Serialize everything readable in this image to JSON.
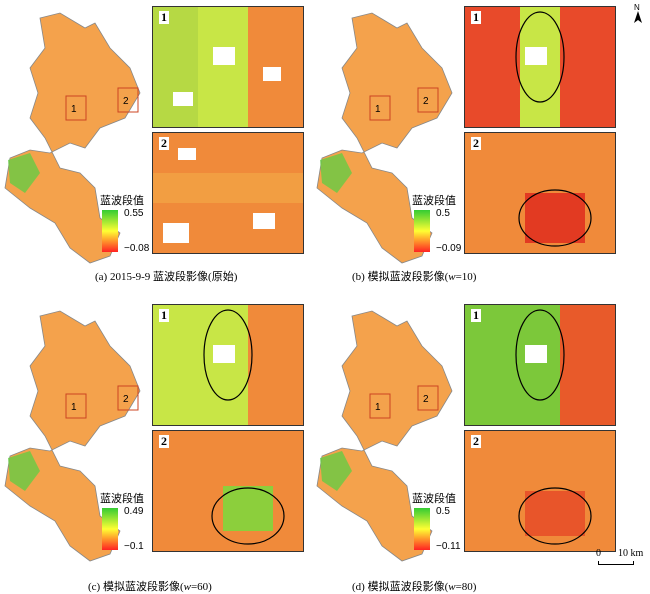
{
  "panels": [
    {
      "caption_pre": "(a) 2015-9-9 蓝波段影像(原始)",
      "caption_em": "",
      "caption_post": "",
      "legend_title": "蓝波段值",
      "legend_max": "0.55",
      "legend_min": "−0.08"
    },
    {
      "caption_pre": "(b) 模拟蓝波段影像(",
      "caption_em": "w",
      "caption_post": "=10)",
      "legend_title": "蓝波段值",
      "legend_max": "0.5",
      "legend_min": "−0.09"
    },
    {
      "caption_pre": "(c) 模拟蓝波段影像(",
      "caption_em": "w",
      "caption_post": "=60)",
      "legend_title": "蓝波段值",
      "legend_max": "0.49",
      "legend_min": "−0.1"
    },
    {
      "caption_pre": "(d) 模拟蓝波段影像(",
      "caption_em": "w",
      "caption_post": "=80)",
      "legend_title": "蓝波段值",
      "legend_max": "0.5",
      "legend_min": "−0.11"
    }
  ],
  "zone_labels": [
    "1",
    "2"
  ],
  "north_label": "N",
  "scale": {
    "zero": "0",
    "distance": "10 km"
  },
  "colors": {
    "high": "#33cc33",
    "mid": "#ffff33",
    "low": "#ff2222",
    "boundary": "#888888",
    "box": "#cc4422"
  }
}
